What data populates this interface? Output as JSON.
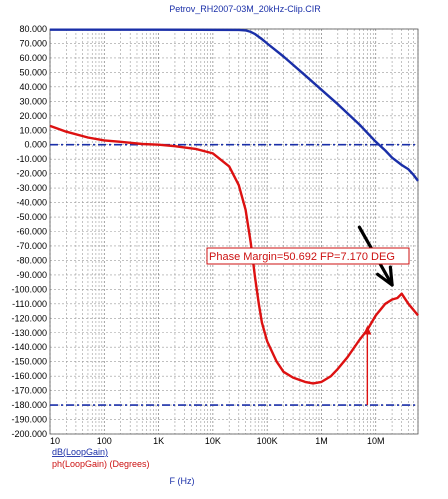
{
  "chart_data": {
    "type": "line",
    "title": "Petrov_RH2007-03M_20kHz-Clip.CIR",
    "xlabel": "F (Hz)",
    "x_scale": "log",
    "xlim": [
      10,
      60000000
    ],
    "ylim": [
      -200,
      80
    ],
    "y_ticks": [
      "80.000",
      "70.000",
      "60.000",
      "50.000",
      "40.000",
      "30.000",
      "20.000",
      "10.000",
      "0.000",
      "-10.000",
      "-20.000",
      "-30.000",
      "-40.000",
      "-50.000",
      "-60.000",
      "-70.000",
      "-80.000",
      "-90.000",
      "-100.000",
      "-110.000",
      "-120.000",
      "-130.000",
      "-140.000",
      "-150.000",
      "-160.000",
      "-170.000",
      "-180.000",
      "-190.000",
      "-200.000"
    ],
    "y_tick_values": [
      80,
      70,
      60,
      50,
      40,
      30,
      20,
      10,
      0,
      -10,
      -20,
      -30,
      -40,
      -50,
      -60,
      -70,
      -80,
      -90,
      -100,
      -110,
      -120,
      -130,
      -140,
      -150,
      -160,
      -170,
      -180,
      -190,
      -200
    ],
    "x_ticks": [
      "10",
      "100",
      "1K",
      "10K",
      "100K",
      "1M",
      "10M"
    ],
    "x_tick_values": [
      10,
      100,
      1000,
      10000,
      100000,
      1000000,
      10000000
    ],
    "grid": true,
    "reference_lines": [
      0,
      -180
    ],
    "annotation": "Phase Margin=50.692 FP=7.170 DEG",
    "colors": {
      "db": "#1a2fa8",
      "phase": "#dd1111",
      "ref": "#1a2fa8",
      "arrow": "#000000"
    },
    "series": [
      {
        "name": "dB(LoopGain)",
        "x": [
          10,
          1000,
          30000,
          40000,
          50000,
          60000,
          80000,
          100000,
          200000,
          500000,
          1000000,
          2000000,
          5000000,
          10000000,
          15000000,
          20000000,
          30000000,
          40000000,
          50000000,
          60000000
        ],
        "y": [
          79.5,
          79.5,
          79.4,
          79.0,
          78.0,
          76.5,
          73.0,
          70.0,
          61.0,
          48.0,
          38.0,
          28.0,
          14.0,
          2.0,
          -4.0,
          -9.0,
          -14.0,
          -17.0,
          -21.0,
          -25.0
        ]
      },
      {
        "name": "ph(LoopGain) (Degrees)",
        "x": [
          10,
          20,
          50,
          100,
          200,
          500,
          1000,
          2000,
          5000,
          10000,
          20000,
          30000,
          40000,
          50000,
          60000,
          70000,
          80000,
          100000,
          150000,
          200000,
          300000,
          500000,
          700000,
          1000000,
          1500000,
          2000000,
          3000000,
          5000000,
          7000000,
          10000000,
          15000000,
          20000000,
          25000000,
          30000000,
          40000000,
          60000000
        ],
        "y": [
          13,
          9,
          5,
          3,
          2,
          0.5,
          0,
          -1,
          -3,
          -6,
          -15,
          -28,
          -45,
          -68,
          -92,
          -110,
          -123,
          -136,
          -150,
          -157,
          -161,
          -164,
          -165,
          -164,
          -160,
          -155,
          -147,
          -135,
          -128,
          -118,
          -110,
          -107,
          -106,
          -103,
          -110,
          -118
        ]
      }
    ],
    "phase_margin_marker": {
      "x": 7000000,
      "y_from": -180,
      "y_to": -125
    },
    "black_arrow": {
      "from": [
        5000000,
        -57
      ],
      "to": [
        20000000,
        -97
      ]
    }
  }
}
